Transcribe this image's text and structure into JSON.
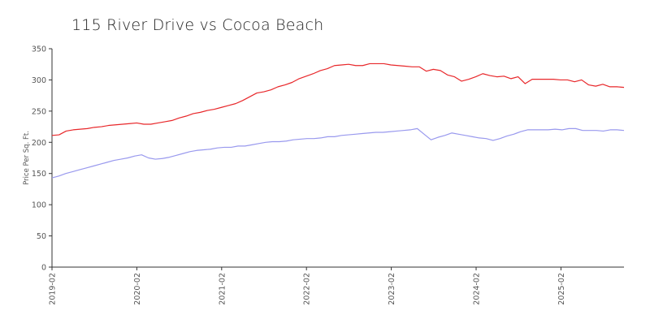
{
  "chart_data": {
    "type": "line",
    "title": "115 River Drive vs Cocoa Beach",
    "xlabel": "",
    "ylabel": "Price Per Sq. Ft.",
    "ylim": [
      0,
      350
    ],
    "yticks": [
      0,
      50,
      100,
      150,
      200,
      250,
      300,
      350
    ],
    "xticks": [
      "2019-02",
      "2020-02",
      "2021-02",
      "2022-02",
      "2023-02",
      "2024-02",
      "2025-02"
    ],
    "x_start": "2019-02",
    "grid": false,
    "legend": "none",
    "series": [
      {
        "color": "#e8272a",
        "values": [
          211,
          212,
          218,
          220,
          221,
          222,
          224,
          225,
          227,
          228,
          229,
          230,
          231,
          229,
          229,
          231,
          233,
          235,
          239,
          242,
          246,
          248,
          251,
          253,
          256,
          259,
          262,
          267,
          273,
          279,
          281,
          284,
          289,
          292,
          296,
          302,
          306,
          310,
          315,
          318,
          323,
          324,
          325,
          323,
          323,
          326,
          326,
          326,
          324,
          323,
          322,
          321,
          321,
          314,
          317,
          315,
          308,
          305,
          298,
          301,
          305,
          310,
          307,
          305,
          306,
          302,
          305,
          294,
          301,
          301,
          301,
          301,
          300,
          300,
          297,
          300,
          292,
          290,
          293,
          289,
          289,
          288
        ]
      },
      {
        "color": "#9999ee",
        "values": [
          143,
          146,
          150,
          153,
          156,
          159,
          162,
          165,
          168,
          171,
          173,
          175,
          178,
          180,
          175,
          173,
          174,
          176,
          179,
          182,
          185,
          187,
          188,
          189,
          191,
          192,
          192,
          194,
          194,
          196,
          198,
          200,
          201,
          201,
          202,
          204,
          205,
          206,
          206,
          207,
          209,
          209,
          211,
          212,
          213,
          214,
          215,
          216,
          216,
          217,
          218,
          219,
          220,
          222,
          213,
          204,
          208,
          211,
          215,
          213,
          211,
          209,
          207,
          206,
          203,
          206,
          210,
          213,
          217,
          220,
          220,
          220,
          220,
          221,
          220,
          222,
          222,
          219,
          219,
          219,
          218,
          220,
          220,
          219
        ]
      }
    ]
  }
}
